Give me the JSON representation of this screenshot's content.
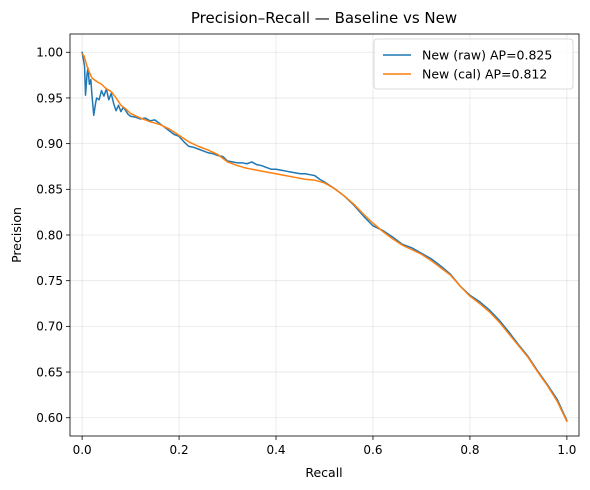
{
  "chart_data": {
    "type": "line",
    "title": "Precision–Recall — Baseline vs New",
    "xlabel": "Recall",
    "ylabel": "Precision",
    "xlim": [
      -0.025,
      1.025
    ],
    "ylim": [
      0.58,
      1.02
    ],
    "xticks": [
      0.0,
      0.2,
      0.4,
      0.6,
      0.8,
      1.0
    ],
    "xtick_labels": [
      "0.0",
      "0.2",
      "0.4",
      "0.6",
      "0.8",
      "1.0"
    ],
    "yticks": [
      0.6,
      0.65,
      0.7,
      0.75,
      0.8,
      0.85,
      0.9,
      0.95,
      1.0
    ],
    "ytick_labels": [
      "0.60",
      "0.65",
      "0.70",
      "0.75",
      "0.80",
      "0.85",
      "0.90",
      "0.95",
      "1.00"
    ],
    "grid": true,
    "legend": "top-right",
    "series": [
      {
        "name": "New (raw) AP=0.825",
        "color": "#1f77b4",
        "x": [
          0.0,
          0.005,
          0.007,
          0.01,
          0.012,
          0.015,
          0.018,
          0.02,
          0.024,
          0.028,
          0.03,
          0.035,
          0.04,
          0.045,
          0.05,
          0.055,
          0.06,
          0.065,
          0.07,
          0.075,
          0.08,
          0.085,
          0.09,
          0.095,
          0.1,
          0.11,
          0.12,
          0.13,
          0.14,
          0.15,
          0.16,
          0.17,
          0.18,
          0.19,
          0.2,
          0.21,
          0.22,
          0.23,
          0.24,
          0.25,
          0.26,
          0.27,
          0.28,
          0.29,
          0.3,
          0.31,
          0.32,
          0.33,
          0.34,
          0.35,
          0.36,
          0.37,
          0.38,
          0.39,
          0.4,
          0.41,
          0.42,
          0.43,
          0.44,
          0.45,
          0.46,
          0.47,
          0.48,
          0.49,
          0.5,
          0.52,
          0.54,
          0.56,
          0.58,
          0.6,
          0.62,
          0.64,
          0.66,
          0.68,
          0.7,
          0.72,
          0.74,
          0.76,
          0.78,
          0.8,
          0.82,
          0.84,
          0.86,
          0.88,
          0.9,
          0.92,
          0.94,
          0.96,
          0.98,
          1.0
        ],
        "y": [
          1.0,
          0.985,
          0.953,
          0.975,
          0.983,
          0.965,
          0.97,
          0.955,
          0.931,
          0.945,
          0.95,
          0.948,
          0.958,
          0.952,
          0.96,
          0.948,
          0.955,
          0.944,
          0.936,
          0.942,
          0.935,
          0.94,
          0.936,
          0.932,
          0.93,
          0.929,
          0.927,
          0.928,
          0.925,
          0.926,
          0.922,
          0.918,
          0.914,
          0.91,
          0.908,
          0.902,
          0.897,
          0.896,
          0.894,
          0.892,
          0.89,
          0.889,
          0.887,
          0.886,
          0.881,
          0.88,
          0.879,
          0.879,
          0.878,
          0.88,
          0.877,
          0.876,
          0.874,
          0.872,
          0.872,
          0.871,
          0.87,
          0.869,
          0.868,
          0.867,
          0.867,
          0.866,
          0.865,
          0.861,
          0.858,
          0.851,
          0.843,
          0.833,
          0.821,
          0.81,
          0.805,
          0.798,
          0.79,
          0.786,
          0.78,
          0.774,
          0.766,
          0.757,
          0.744,
          0.734,
          0.727,
          0.718,
          0.707,
          0.694,
          0.68,
          0.667,
          0.651,
          0.636,
          0.62,
          0.597
        ]
      },
      {
        "name": "New (cal) AP=0.812",
        "color": "#ff7f0e",
        "x": [
          0.0,
          0.004,
          0.01,
          0.015,
          0.02,
          0.03,
          0.04,
          0.05,
          0.06,
          0.07,
          0.08,
          0.09,
          0.1,
          0.12,
          0.14,
          0.16,
          0.18,
          0.2,
          0.22,
          0.24,
          0.26,
          0.28,
          0.3,
          0.32,
          0.34,
          0.36,
          0.38,
          0.4,
          0.42,
          0.44,
          0.46,
          0.48,
          0.5,
          0.52,
          0.54,
          0.56,
          0.58,
          0.6,
          0.62,
          0.64,
          0.66,
          0.68,
          0.7,
          0.72,
          0.74,
          0.76,
          0.78,
          0.8,
          0.82,
          0.84,
          0.86,
          0.88,
          0.9,
          0.92,
          0.94,
          0.96,
          0.98,
          1.0
        ],
        "y": [
          0.998,
          0.996,
          0.985,
          0.978,
          0.972,
          0.968,
          0.965,
          0.96,
          0.957,
          0.95,
          0.942,
          0.938,
          0.933,
          0.928,
          0.924,
          0.921,
          0.916,
          0.909,
          0.902,
          0.897,
          0.893,
          0.888,
          0.88,
          0.876,
          0.873,
          0.871,
          0.869,
          0.867,
          0.865,
          0.863,
          0.861,
          0.86,
          0.857,
          0.851,
          0.843,
          0.834,
          0.823,
          0.813,
          0.804,
          0.796,
          0.789,
          0.784,
          0.779,
          0.772,
          0.764,
          0.756,
          0.744,
          0.733,
          0.725,
          0.716,
          0.705,
          0.692,
          0.679,
          0.666,
          0.65,
          0.635,
          0.618,
          0.596
        ]
      }
    ]
  }
}
